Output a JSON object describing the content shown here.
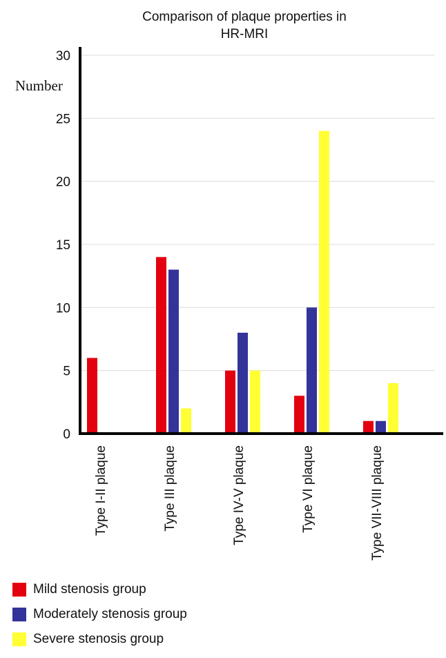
{
  "chart_data": {
    "type": "bar",
    "title": [
      "Comparison of plaque properties in",
      "HR-MRI"
    ],
    "ylabel": "Number",
    "xlabel": "",
    "ylim": [
      0,
      30
    ],
    "yticks": [
      0,
      5,
      10,
      15,
      20,
      25,
      30
    ],
    "grid": true,
    "legend_position": "bottom-left",
    "categories": [
      "Type I-II plaque",
      "Type III plaque",
      "Type IV-V plaque",
      "Type VI plaque",
      "Type VII-VIII plaque"
    ],
    "series": [
      {
        "name": "Mild stenosis group",
        "color": "#e3000f",
        "values": [
          6,
          14,
          5,
          3,
          1
        ]
      },
      {
        "name": "Moderately stenosis group",
        "color": "#33339a",
        "values": [
          0,
          13,
          8,
          10,
          1
        ]
      },
      {
        "name": "Severe stenosis group",
        "color": "#ffff33",
        "values": [
          0,
          2,
          5,
          24,
          4
        ]
      }
    ]
  }
}
